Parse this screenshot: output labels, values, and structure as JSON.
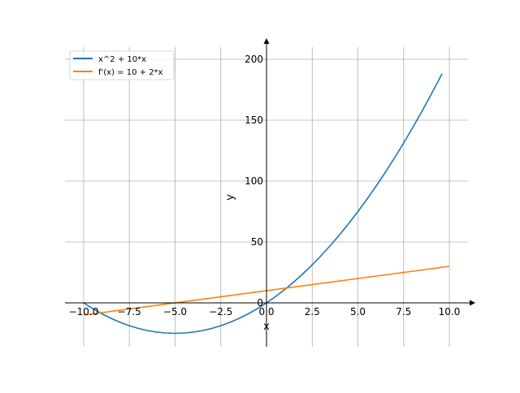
{
  "chart_data": {
    "type": "line",
    "title": "",
    "xlabel": "x",
    "ylabel": "y",
    "xlim": [
      -11.02,
      11.02
    ],
    "ylim": [
      -36,
      210
    ],
    "grid": true,
    "legend_position": "top-left",
    "x_ticks": [
      -10,
      -7.5,
      -5,
      -2.5,
      0,
      2.5,
      5,
      7.5,
      10
    ],
    "x_tick_labels": [
      "−10.0",
      "−7.5",
      "−5.0",
      "−2.5",
      "0.0",
      "2.5",
      "5.0",
      "7.5",
      "10.0"
    ],
    "y_ticks": [
      0,
      50,
      100,
      150,
      200
    ],
    "y_tick_labels": [
      "0",
      "50",
      "100",
      "150",
      "200"
    ],
    "series": [
      {
        "name": "x^2 + 10*x",
        "color": "#1f77b4",
        "x": [
          -10,
          -9.5,
          -9,
          -8.5,
          -8,
          -7.5,
          -7,
          -6.5,
          -6,
          -5.5,
          -5,
          -4.5,
          -4,
          -3.5,
          -3,
          -2.5,
          -2,
          -1.5,
          -1,
          -0.5,
          0,
          0.5,
          1,
          1.5,
          2,
          2.5,
          3,
          3.5,
          4,
          4.5,
          5,
          5.5,
          6,
          6.5,
          7,
          7.5,
          8,
          8.5,
          9,
          9.5,
          9.6
        ],
        "y": [
          0,
          -4.75,
          -9,
          -12.75,
          -16,
          -18.75,
          -21,
          -22.75,
          -24,
          -24.75,
          -25,
          -24.75,
          -24,
          -22.75,
          -21,
          -18.75,
          -16,
          -12.75,
          -9,
          -4.75,
          0,
          5.25,
          11,
          17.25,
          24,
          31.25,
          39,
          47.25,
          56,
          65.25,
          75,
          85.25,
          96,
          107.25,
          119,
          131.25,
          144,
          157.25,
          171,
          185.25,
          188.16
        ]
      },
      {
        "name": "f'(x) = 10 + 2*x",
        "color": "#ff7f0e",
        "x": [
          -10,
          10
        ],
        "y": [
          -10,
          30
        ]
      }
    ]
  }
}
